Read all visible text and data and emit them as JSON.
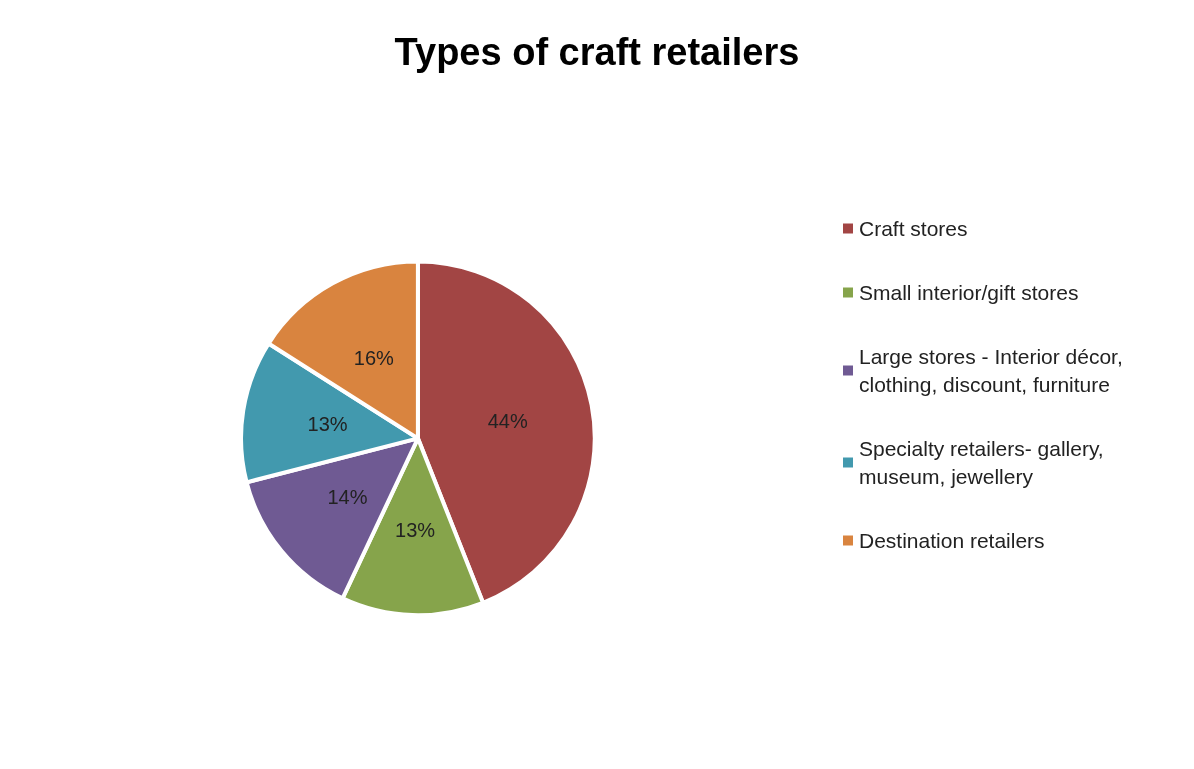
{
  "chart_data": {
    "type": "pie",
    "title": "Types of craft retailers",
    "categories": [
      "Craft stores",
      "Small interior/gift stores",
      "Large stores - Interior décor, clothing, discount, furniture",
      "Specialty retailers- gallery, museum, jewellery",
      "Destination retailers"
    ],
    "values": [
      44,
      13,
      14,
      13,
      16
    ],
    "value_labels": [
      "44%",
      "13%",
      "14%",
      "13%",
      "16%"
    ],
    "colors": [
      "#a24544",
      "#86a44b",
      "#6f5a93",
      "#4299ae",
      "#d9843f"
    ],
    "legend": "right"
  }
}
